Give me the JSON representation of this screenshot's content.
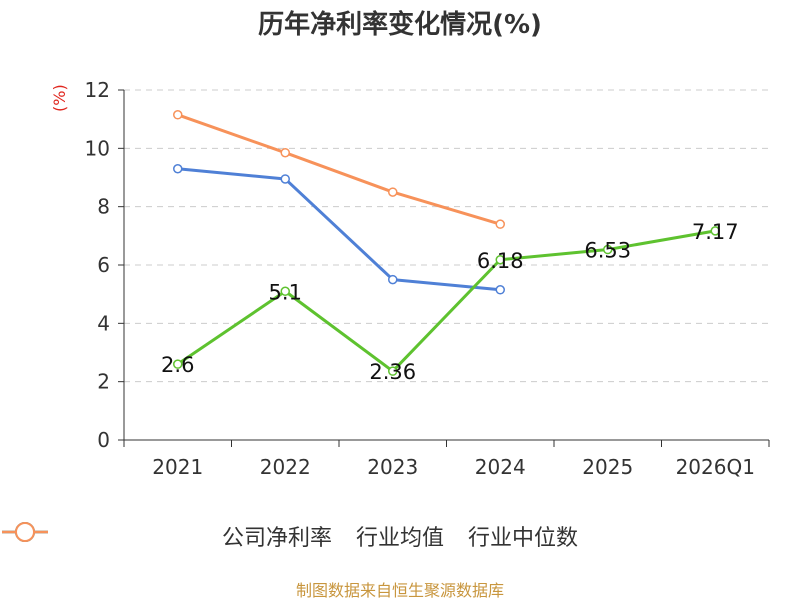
{
  "chart_data": {
    "type": "line",
    "title": "历年净利率变化情况(%)",
    "ylabel": "(%)",
    "categories": [
      "2021",
      "2022",
      "2023",
      "2024",
      "2025",
      "2026Q1"
    ],
    "ylim": [
      0,
      12
    ],
    "yticks": [
      "0",
      "2",
      "4",
      "6",
      "8",
      "10",
      "12"
    ],
    "grid": true,
    "legend_position": "bottom",
    "series": [
      {
        "name": "公司净利率",
        "color": "#5ec22f",
        "values": [
          2.6,
          5.1,
          2.36,
          6.18,
          6.53,
          7.17
        ],
        "labels": [
          "2.6",
          "5.1",
          "2.36",
          "6.18",
          "6.53",
          "7.17"
        ]
      },
      {
        "name": "行业均值",
        "color": "#4f80d6",
        "values": [
          9.3,
          8.95,
          5.5,
          5.15,
          null,
          null
        ]
      },
      {
        "name": "行业中位数",
        "color": "#f7925a",
        "values": [
          11.15,
          9.85,
          8.5,
          7.4,
          null,
          null
        ]
      }
    ]
  },
  "footer": {
    "source": "制图数据来自恒生聚源数据库"
  }
}
